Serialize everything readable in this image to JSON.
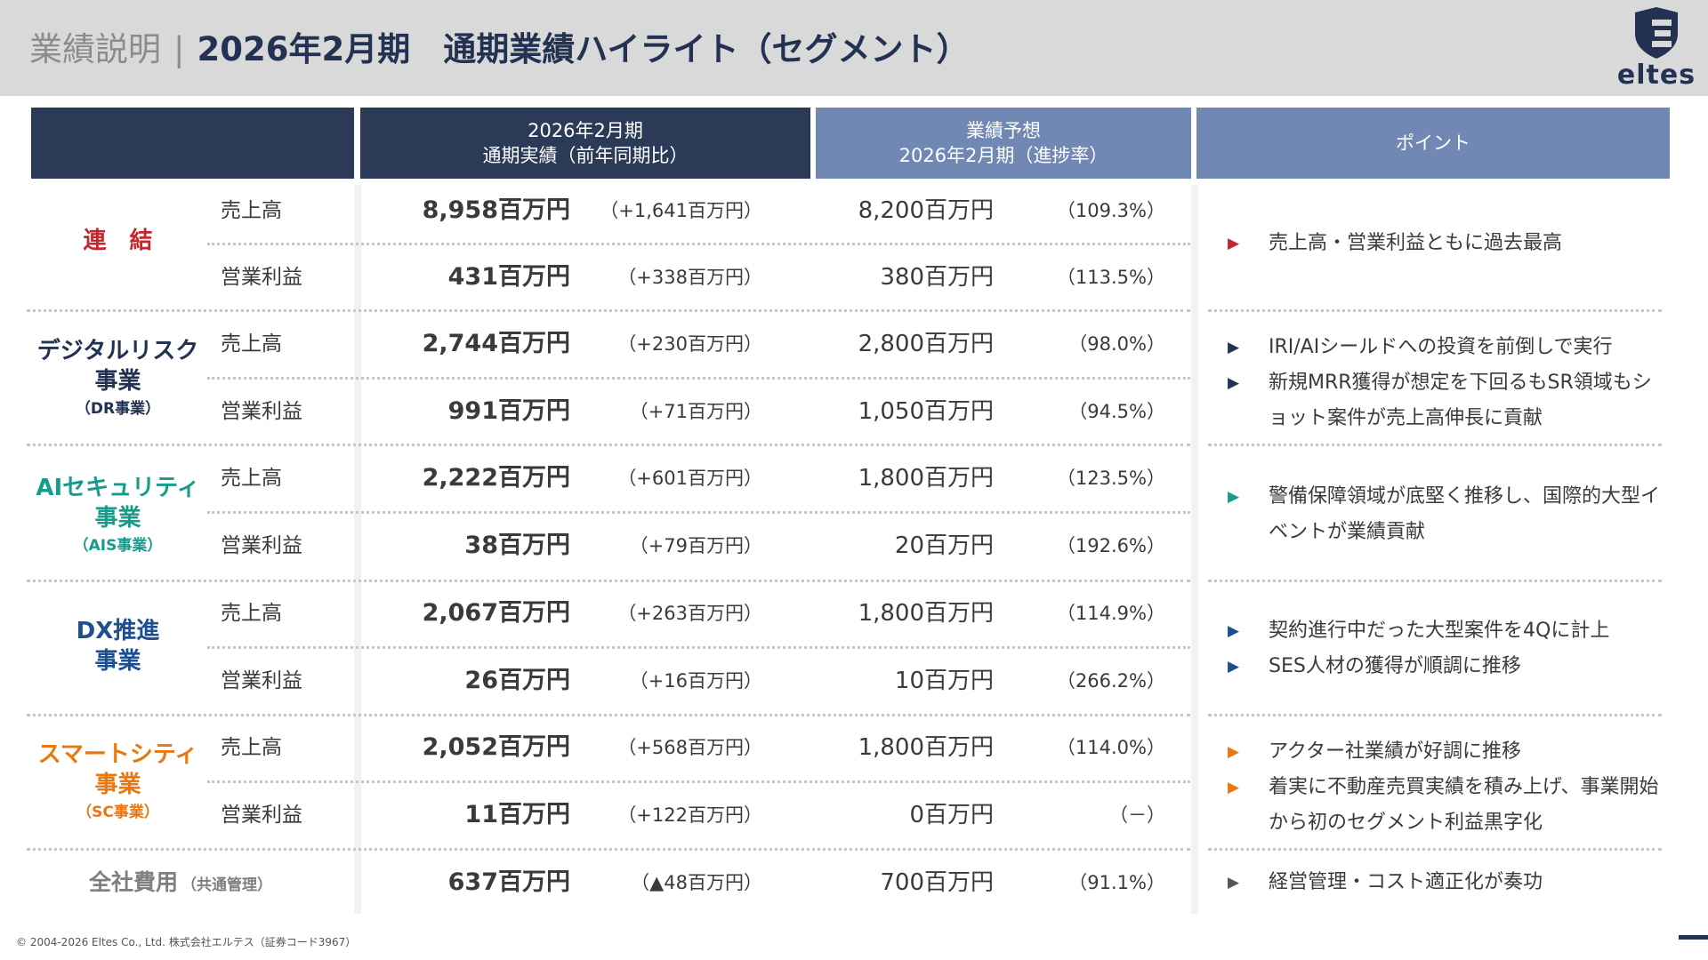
{
  "header": {
    "pre_title": "業績説明",
    "separator": "|",
    "title": "2026年2月期　通期業績ハイライト（セグメント）",
    "logo_text": "eltes"
  },
  "table_header": {
    "actual_line1": "2026年2月期",
    "actual_line2": "通期実績（前年同期比）",
    "forecast_line1": "業績予想",
    "forecast_line2": "2026年2月期（進捗率）",
    "points": "ポイント"
  },
  "segments": {
    "consolidated": {
      "name": "連　結"
    },
    "dr": {
      "name_line1": "デジタルリスク",
      "name_line2": "事業",
      "sub": "（DR事業）"
    },
    "ais": {
      "name_line1": "AIセキュリティ",
      "name_line2": "事業",
      "sub": "（AIS事業）"
    },
    "dx": {
      "name_line1": "DX推進",
      "name_line2": "事業"
    },
    "sc": {
      "name_line1": "スマートシティ",
      "name_line2": "事業",
      "sub": "（SC事業）"
    }
  },
  "rows": [
    {
      "label": "売上高",
      "actual": "8,958百万円",
      "yoy": "（+1,641百万円）",
      "forecast": "8,200百万円",
      "rate": "（109.3%）"
    },
    {
      "label": "営業利益",
      "actual": "431百万円",
      "yoy": "（+338百万円）",
      "forecast": "380百万円",
      "rate": "（113.5%）"
    },
    {
      "label": "売上高",
      "actual": "2,744百万円",
      "yoy": "（+230百万円）",
      "forecast": "2,800百万円",
      "rate": "（98.0%）"
    },
    {
      "label": "営業利益",
      "actual": "991百万円",
      "yoy": "（+71百万円）",
      "forecast": "1,050百万円",
      "rate": "（94.5%）"
    },
    {
      "label": "売上高",
      "actual": "2,222百万円",
      "yoy": "（+601百万円）",
      "forecast": "1,800百万円",
      "rate": "（123.5%）"
    },
    {
      "label": "営業利益",
      "actual": "38百万円",
      "yoy": "（+79百万円）",
      "forecast": "20百万円",
      "rate": "（192.6%）"
    },
    {
      "label": "売上高",
      "actual": "2,067百万円",
      "yoy": "（+263百万円）",
      "forecast": "1,800百万円",
      "rate": "（114.9%）"
    },
    {
      "label": "営業利益",
      "actual": "26百万円",
      "yoy": "（+16百万円）",
      "forecast": "10百万円",
      "rate": "（266.2%）"
    },
    {
      "label": "売上高",
      "actual": "2,052百万円",
      "yoy": "（+568百万円）",
      "forecast": "1,800百万円",
      "rate": "（114.0%）"
    },
    {
      "label": "営業利益",
      "actual": "11百万円",
      "yoy": "（+122百万円）",
      "forecast": "0百万円",
      "rate": "（－）"
    }
  ],
  "total": {
    "label": "全社費用",
    "sub": "（共通管理）",
    "actual": "637百万円",
    "yoy": "（▲48百万円）",
    "forecast": "700百万円",
    "rate": "（91.1%）"
  },
  "points": {
    "consolidated": [
      "売上高・営業利益ともに過去最高"
    ],
    "dr": [
      "IRI/AIシールドへの投資を前倒しで実行",
      "新規MRR獲得が想定を下回るもSR領域もショット案件が売上高伸長に貢献"
    ],
    "ais": [
      "警備保障領域が底堅く推移し、国際的大型イベントが業績貢献"
    ],
    "dx": [
      "契約進行中だった大型案件を4Qに計上",
      "SES人材の獲得が順調に推移"
    ],
    "sc": [
      "アクター社業績が好調に推移",
      "着実に不動産売買実績を積み上げ、事業開始から初のセグメント利益黒字化"
    ],
    "total": [
      "経営管理・コスト適正化が奏功"
    ]
  },
  "colors": {
    "navy": "#233252",
    "header_dark": "#2b3a57",
    "header_light": "#7088b3",
    "red": "#c0282d",
    "teal": "#179b8c",
    "blue": "#1e4f8f",
    "orange": "#e8780f",
    "gray": "#7f7f7f"
  },
  "icons": {
    "logo": "shield-e-logo",
    "bullet": "triangle-right"
  },
  "footer": {
    "copyright": "© 2004-2026 Eltes Co., Ltd.  株式会社エルテス（証券コード3967）"
  }
}
